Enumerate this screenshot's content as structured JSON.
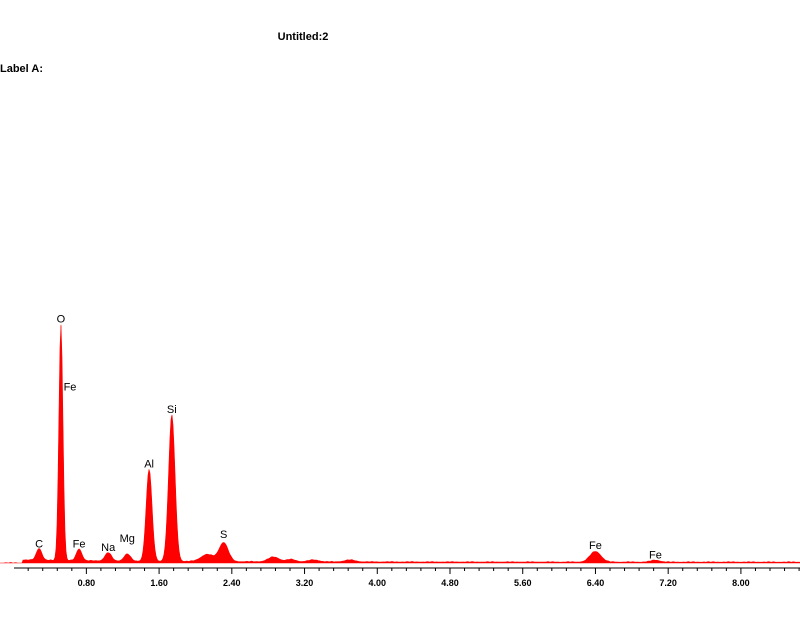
{
  "window": {
    "title": "Untitled:2",
    "label": "Label A:"
  },
  "colors": {
    "spectrum": "#ff0000",
    "axis": "#000000",
    "background": "#ffffff"
  },
  "chart_data": {
    "type": "area",
    "xlabel": "",
    "ylabel": "",
    "xlim": [
      -0.15,
      8.65
    ],
    "ylim": [
      0,
      100
    ],
    "x_ticks": [
      "0.80",
      "1.60",
      "2.40",
      "3.20",
      "4.00",
      "4.80",
      "5.60",
      "6.40",
      "7.20",
      "8.00"
    ],
    "peaks": [
      {
        "element": "C",
        "energy": 0.28,
        "counts": 5,
        "width": 0.03
      },
      {
        "element": "O",
        "energy": 0.52,
        "counts": 100,
        "width": 0.022
      },
      {
        "element": "Fe",
        "energy": 0.72,
        "counts": 5,
        "width": 0.03
      },
      {
        "element": "Na",
        "energy": 1.04,
        "counts": 3.5,
        "width": 0.035
      },
      {
        "element": "Mg",
        "energy": 1.25,
        "counts": 3,
        "width": 0.035
      },
      {
        "element": "Al",
        "energy": 1.49,
        "counts": 39,
        "width": 0.032
      },
      {
        "element": "Si",
        "energy": 1.74,
        "counts": 62,
        "width": 0.035
      },
      {
        "element": "S",
        "energy": 2.31,
        "counts": 8,
        "width": 0.05
      },
      {
        "element": "Fe",
        "energy": 6.4,
        "counts": 4.5,
        "width": 0.06
      },
      {
        "element": "Fe",
        "energy": 7.06,
        "counts": 0.8,
        "width": 0.05
      }
    ],
    "minor_peaks": [
      {
        "energy": 2.13,
        "counts": 3,
        "width": 0.07
      },
      {
        "energy": 2.86,
        "counts": 2,
        "width": 0.06
      },
      {
        "energy": 3.05,
        "counts": 1,
        "width": 0.05
      },
      {
        "energy": 3.3,
        "counts": 0.8,
        "width": 0.06
      },
      {
        "energy": 3.7,
        "counts": 0.8,
        "width": 0.06
      }
    ],
    "peak_labels": [
      {
        "text": "C",
        "energy": 0.28,
        "counts": 6.5
      },
      {
        "text": "O",
        "energy": 0.52,
        "counts": 102
      },
      {
        "text": "Fe",
        "energy": 0.62,
        "counts": 73
      },
      {
        "text": "Fe",
        "energy": 0.72,
        "counts": 6.5
      },
      {
        "text": "Na",
        "energy": 1.04,
        "counts": 5
      },
      {
        "text": "Mg",
        "energy": 1.25,
        "counts": 9
      },
      {
        "text": "Al",
        "energy": 1.49,
        "counts": 40.5
      },
      {
        "text": "Si",
        "energy": 1.74,
        "counts": 63.5
      },
      {
        "text": "S",
        "energy": 2.31,
        "counts": 10.5
      },
      {
        "text": "Fe",
        "energy": 6.4,
        "counts": 6
      },
      {
        "text": "Fe",
        "energy": 7.06,
        "counts": 2
      }
    ]
  }
}
